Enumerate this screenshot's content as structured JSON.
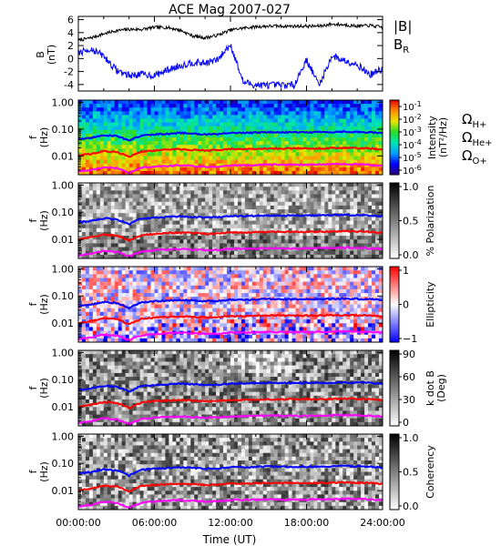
{
  "title": "ACE Mag 2007-027",
  "xaxis": {
    "label": "Time (UT)",
    "ticks": [
      "00:00:00",
      "06:00:00",
      "12:00:00",
      "18:00:00",
      "24:00:00"
    ],
    "range_hours": [
      0,
      24
    ]
  },
  "legend": {
    "B": {
      "label": "|B|",
      "color": "#000000"
    },
    "BR": {
      "label": "B",
      "sub": "R",
      "color": "#0000ff"
    },
    "H": {
      "label": "Ω",
      "sub": "H+",
      "color": "#0000ff"
    },
    "He": {
      "label": "Ω",
      "sub": "He+",
      "color": "#ff0000"
    },
    "O": {
      "label": "Ω",
      "sub": "O+",
      "color": "#ff00ff"
    }
  },
  "colors": {
    "blue": "#0000ff",
    "red": "#ff0000",
    "magenta": "#ff00ff",
    "black": "#000000"
  },
  "panels": [
    {
      "id": "mag",
      "ylabel_main": "B",
      "ylabel_unit": "(nT)",
      "yticks": [
        "6",
        "4",
        "2",
        "0",
        "-2",
        "-4"
      ],
      "ylim": [
        -5,
        6.5
      ]
    },
    {
      "id": "intensity",
      "ylabel_main": "f",
      "ylabel_unit": "(Hz)",
      "yticks": [
        "1.00",
        "0.10",
        "0.01"
      ],
      "colorbar_label": "Intensity",
      "colorbar_unit": "(nT²/Hz)",
      "colorbar_ticks": [
        {
          "base": "10",
          "exp": "-1"
        },
        {
          "base": "10",
          "exp": "-2"
        },
        {
          "base": "10",
          "exp": "-3"
        },
        {
          "base": "10",
          "exp": "-4"
        },
        {
          "base": "10",
          "exp": "-5"
        },
        {
          "base": "10",
          "exp": "-6"
        }
      ]
    },
    {
      "id": "polarization",
      "ylabel_main": "f",
      "ylabel_unit": "(Hz)",
      "yticks": [
        "1.00",
        "0.10",
        "0.01"
      ],
      "colorbar_label": "% Polarization",
      "colorbar_ticks": [
        "1.0",
        "0.5",
        "0.0"
      ]
    },
    {
      "id": "ellipticity",
      "ylabel_main": "f",
      "ylabel_unit": "(Hz)",
      "yticks": [
        "1.00",
        "0.10",
        "0.01"
      ],
      "colorbar_label": "Ellipticity",
      "colorbar_ticks": [
        "1",
        "0",
        "−1"
      ]
    },
    {
      "id": "kdotb",
      "ylabel_main": "f",
      "ylabel_unit": "(Hz)",
      "yticks": [
        "1.00",
        "0.10",
        "0.01"
      ],
      "colorbar_label": "k dot B",
      "colorbar_unit": "(Deg)",
      "colorbar_ticks": [
        "90",
        "60",
        "30",
        "0"
      ]
    },
    {
      "id": "coherency",
      "ylabel_main": "f",
      "ylabel_unit": "(Hz)",
      "yticks": [
        "1.00",
        "0.10",
        "0.01"
      ],
      "colorbar_label": "Coherency",
      "colorbar_ticks": [
        "1.0",
        "0.5",
        "0.0"
      ]
    }
  ],
  "chart_data": {
    "type": "line",
    "title": "ACE Mag 2007-027",
    "xlabel": "Time (UT)",
    "x_hours": [
      0,
      1,
      2,
      3,
      4,
      5,
      6,
      7,
      8,
      9,
      10,
      11,
      12,
      13,
      14,
      15,
      16,
      17,
      18,
      19,
      20,
      21,
      22,
      23,
      24
    ],
    "magnetic_field": {
      "ylabel": "B (nT)",
      "ylim": [
        -5,
        6.5
      ],
      "series": [
        {
          "name": "|B|",
          "values": [
            2.8,
            3.2,
            3.8,
            4.3,
            4.5,
            4.5,
            4.8,
            4.8,
            4.4,
            3.5,
            3.2,
            3.6,
            4.4,
            4.7,
            4.9,
            5.0,
            5.0,
            5.0,
            5.0,
            5.0,
            5.3,
            5.2,
            5.0,
            5.1,
            4.8
          ]
        },
        {
          "name": "B_R",
          "values": [
            0.8,
            1.5,
            0.4,
            -1.8,
            -2.6,
            -2.4,
            -2.6,
            -1.8,
            -1.1,
            -0.6,
            -0.7,
            -0.2,
            2.2,
            -3.6,
            -4.1,
            -4.1,
            -4.1,
            -4.1,
            -0.2,
            -4.1,
            0.4,
            -0.3,
            -0.9,
            -2.5,
            -1.6
          ]
        }
      ]
    },
    "spectrogram_freq_axis": {
      "scale": "log",
      "ylim_hz": [
        0.002,
        1.2
      ],
      "ticks_hz": [
        1.0,
        0.1,
        0.01
      ]
    },
    "gyrofrequencies_hz": [
      {
        "name": "ΩH+",
        "values": [
          0.042,
          0.048,
          0.06,
          0.055,
          0.036,
          0.058,
          0.063,
          0.067,
          0.072,
          0.068,
          0.064,
          0.066,
          0.072,
          0.072,
          0.074,
          0.077,
          0.076,
          0.075,
          0.076,
          0.076,
          0.078,
          0.08,
          0.078,
          0.076,
          0.07
        ]
      },
      {
        "name": "ΩHe+",
        "values": [
          0.01,
          0.012,
          0.015,
          0.014,
          0.009,
          0.0145,
          0.016,
          0.017,
          0.018,
          0.017,
          0.016,
          0.0165,
          0.018,
          0.018,
          0.0185,
          0.019,
          0.019,
          0.019,
          0.019,
          0.019,
          0.0195,
          0.02,
          0.0195,
          0.019,
          0.0175
        ]
      },
      {
        "name": "ΩO+",
        "values": [
          0.0026,
          0.003,
          0.0038,
          0.0035,
          0.0023,
          0.0036,
          0.004,
          0.0042,
          0.0045,
          0.0042,
          0.004,
          0.0041,
          0.0045,
          0.0045,
          0.0046,
          0.0048,
          0.0047,
          0.0047,
          0.0047,
          0.0048,
          0.0049,
          0.005,
          0.0049,
          0.0047,
          0.0044
        ]
      }
    ],
    "colorbars": [
      {
        "panel": "Intensity (nT²/Hz)",
        "scale": "log",
        "range": [
          1e-06,
          0.1
        ]
      },
      {
        "panel": "% Polarization",
        "range": [
          0,
          1
        ]
      },
      {
        "panel": "Ellipticity",
        "range": [
          -1,
          1
        ]
      },
      {
        "panel": "k dot B (Deg)",
        "range": [
          0,
          90
        ]
      },
      {
        "panel": "Coherency",
        "range": [
          0,
          1
        ]
      }
    ]
  }
}
